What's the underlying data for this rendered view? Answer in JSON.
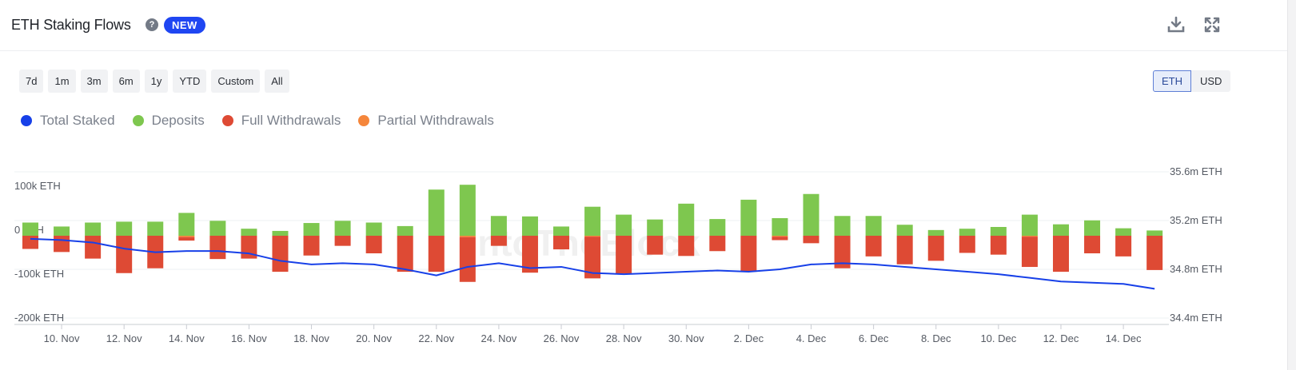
{
  "header": {
    "title": "ETH Staking Flows",
    "help_icon": "question-circle-icon",
    "badge": "NEW",
    "download_icon": "download-icon",
    "fullscreen_icon": "expand-icon"
  },
  "ranges": [
    "7d",
    "1m",
    "3m",
    "6m",
    "1y",
    "YTD",
    "Custom",
    "All"
  ],
  "units": {
    "options": [
      "ETH",
      "USD"
    ],
    "selected": "ETH"
  },
  "colors": {
    "total_staked": "#1740e8",
    "deposits": "#7ec74f",
    "full_withdrawals": "#de4a34",
    "partial_withdrawals": "#f5863b"
  },
  "legend": [
    {
      "label": "Total Staked",
      "color": "#1740e8"
    },
    {
      "label": "Deposits",
      "color": "#7ec74f"
    },
    {
      "label": "Full Withdrawals",
      "color": "#de4a34"
    },
    {
      "label": "Partial Withdrawals",
      "color": "#f5863b"
    }
  ],
  "watermark": "IntoTheBlock",
  "chart_data": {
    "type": "bar",
    "grid": true,
    "legend_position": "top-left",
    "y_left": {
      "ticks": [
        "100k ETH",
        "0 ETH",
        "-100k ETH",
        "-200k ETH"
      ],
      "tick_values": [
        100000,
        0,
        -100000,
        -200000
      ],
      "range": [
        -200000,
        110000
      ]
    },
    "y_right": {
      "ticks": [
        "35.6m ETH",
        "35.2m ETH",
        "34.8m ETH",
        "34.4m ETH"
      ],
      "tick_values": [
        35.6,
        35.2,
        34.8,
        34.4
      ],
      "range": [
        34.4,
        35.6
      ],
      "unit": "m ETH"
    },
    "x_ticks": [
      "10. Nov",
      "12. Nov",
      "14. Nov",
      "16. Nov",
      "18. Nov",
      "20. Nov",
      "22. Nov",
      "24. Nov",
      "26. Nov",
      "28. Nov",
      "30. Nov",
      "2. Dec",
      "4. Dec",
      "6. Dec",
      "8. Dec",
      "10. Dec",
      "12. Dec",
      "14. Dec"
    ],
    "dates": [
      "9. Nov",
      "10. Nov",
      "11. Nov",
      "12. Nov",
      "13. Nov",
      "14. Nov",
      "15. Nov",
      "16. Nov",
      "17. Nov",
      "18. Nov",
      "19. Nov",
      "20. Nov",
      "21. Nov",
      "22. Nov",
      "23. Nov",
      "24. Nov",
      "25. Nov",
      "26. Nov",
      "27. Nov",
      "28. Nov",
      "29. Nov",
      "30. Nov",
      "1. Dec",
      "2. Dec",
      "3. Dec",
      "4. Dec",
      "5. Dec",
      "6. Dec",
      "7. Dec",
      "8. Dec",
      "9. Dec",
      "10. Dec",
      "11. Dec",
      "12. Dec",
      "13. Dec",
      "14. Dec",
      "15. Dec"
    ],
    "series": [
      {
        "name": "Deposits",
        "axis": "left",
        "values": [
          30000,
          21000,
          30000,
          32000,
          32000,
          52000,
          34000,
          16000,
          11000,
          29000,
          34000,
          30000,
          22000,
          105000,
          116000,
          45000,
          44000,
          21000,
          66000,
          48000,
          37000,
          73000,
          38000,
          82000,
          40000,
          95000,
          45000,
          45000,
          25000,
          13000,
          16000,
          20000,
          48000,
          26000,
          35000,
          17000,
          12000
        ]
      },
      {
        "name": "Full Withdrawals",
        "axis": "left",
        "values": [
          -30000,
          -37000,
          -52000,
          -85000,
          -74000,
          -8000,
          -53000,
          -52000,
          -82000,
          -45000,
          -23000,
          -40000,
          -82000,
          -82000,
          -102000,
          -23000,
          -84000,
          -31000,
          -95000,
          -86000,
          -43000,
          -46000,
          -35000,
          -82000,
          -8000,
          -17000,
          -74000,
          -47000,
          -65000,
          -57000,
          -39000,
          -43000,
          -69000,
          -82000,
          -40000,
          -47000,
          -78000
        ]
      },
      {
        "name": "Partial Withdrawals",
        "axis": "left",
        "values": [
          0,
          0,
          0,
          0,
          0,
          -3000,
          0,
          0,
          0,
          0,
          0,
          0,
          0,
          0,
          -3000,
          0,
          0,
          0,
          -2000,
          0,
          0,
          0,
          0,
          0,
          -2000,
          0,
          0,
          0,
          0,
          0,
          0,
          0,
          -2000,
          0,
          0,
          0,
          0
        ]
      },
      {
        "name": "Total Staked",
        "axis": "right",
        "type": "line",
        "values": [
          35.05,
          35.04,
          35.02,
          34.97,
          34.94,
          34.95,
          34.95,
          34.93,
          34.87,
          34.84,
          34.85,
          34.84,
          34.8,
          34.75,
          34.82,
          34.85,
          34.81,
          34.82,
          34.77,
          34.76,
          34.77,
          34.78,
          34.79,
          34.78,
          34.8,
          34.84,
          34.85,
          34.84,
          34.82,
          34.8,
          34.78,
          34.76,
          34.73,
          34.7,
          34.69,
          34.68,
          34.64
        ]
      }
    ]
  }
}
